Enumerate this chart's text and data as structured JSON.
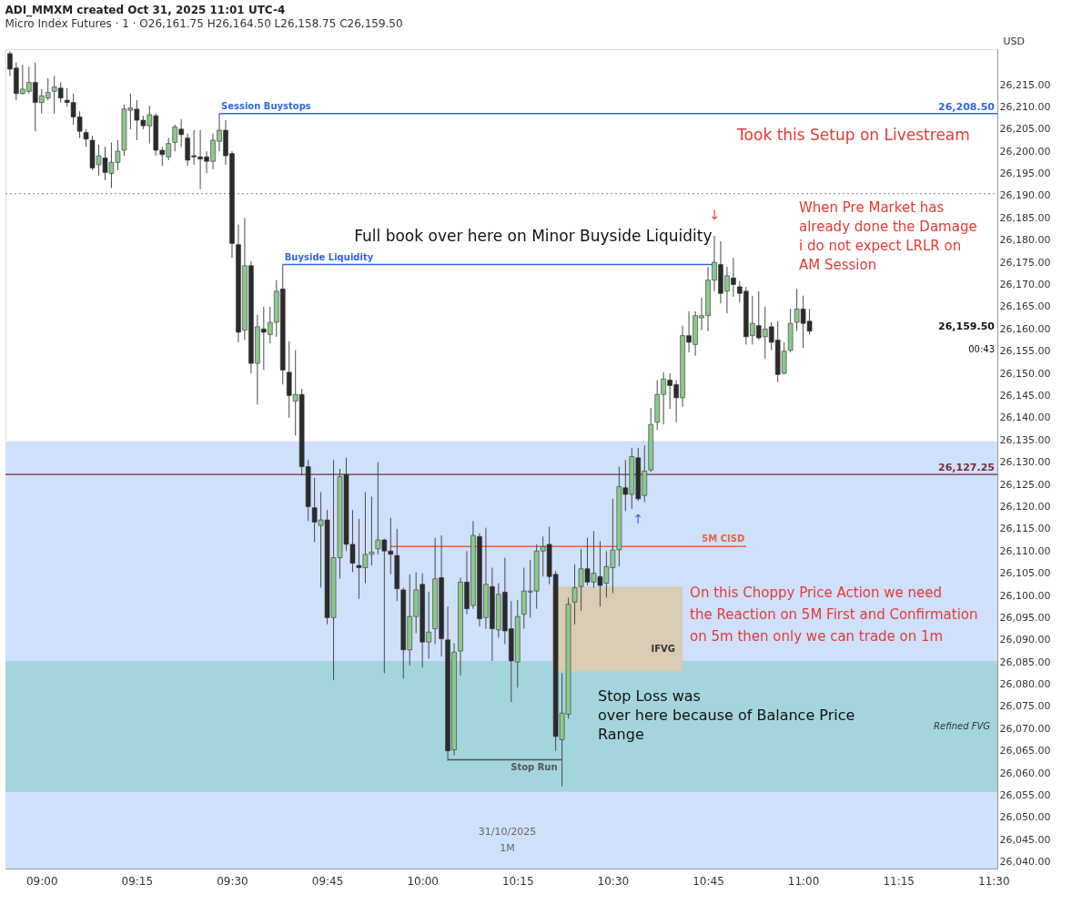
{
  "chart_data": {
    "type": "candlestick",
    "title": "ADI_MMXM created Oct 31, 2025 11:01 UTC-4",
    "subtitle": "Micro Index Futures · 1 · O26,161.75 H26,164.50 L26,158.75 C26,159.50",
    "ylabel": "USD",
    "x": [
      8.9167,
      8.9333,
      8.95,
      8.9667,
      8.9833,
      9,
      9.0167,
      9.0333,
      9.05,
      9.0667,
      9.0833,
      9.1,
      9.1167,
      9.1333,
      9.15,
      9.1667,
      9.1833,
      9.2,
      9.2167,
      9.2333,
      9.25,
      9.2667,
      9.2833,
      9.3,
      9.3167,
      9.3333,
      9.35,
      9.3667,
      9.3833,
      9.4,
      9.4167,
      9.4333,
      9.45,
      9.4667,
      9.4833,
      9.5,
      9.5167,
      9.5333,
      9.55,
      9.5667,
      9.5833,
      9.6,
      9.6167,
      9.6333,
      9.65,
      9.6667,
      9.6833,
      9.7,
      9.7167,
      9.7333,
      9.75,
      9.7667,
      9.7833,
      9.8,
      9.8167,
      9.8333,
      9.85,
      9.8667,
      9.8833,
      9.9,
      9.9167,
      9.9333,
      9.95,
      9.9667,
      9.9833,
      10,
      10.0167,
      10.0333,
      10.05,
      10.0667,
      10.0833,
      10.1,
      10.1167,
      10.1333,
      10.15,
      10.1667,
      10.1833,
      10.2,
      10.2167,
      10.2333,
      10.25,
      10.2667,
      10.2833,
      10.3,
      10.3167,
      10.3333,
      10.35,
      10.3667,
      10.3833,
      10.4,
      10.4167,
      10.4333,
      10.45,
      10.4667,
      10.4833,
      10.5,
      10.5167,
      10.5333,
      10.55,
      10.5667,
      10.5833,
      10.6,
      10.6167,
      10.6333,
      10.65,
      10.6667,
      10.6833,
      10.7,
      10.7167,
      10.7333,
      10.75,
      10.7667,
      10.7833,
      10.8,
      10.8167,
      10.8333,
      10.85,
      10.8667,
      10.8833,
      10.9,
      10.9167,
      10.9333,
      10.95,
      10.9667,
      10.9833,
      11,
      11.0167
    ],
    "ohlc": [
      [
        26222,
        26222.5,
        26217,
        26218.5
      ],
      [
        26218.75,
        26220,
        26211.5,
        26213
      ],
      [
        26213,
        26219.5,
        26212.75,
        26214
      ],
      [
        26213.5,
        26219,
        26213,
        26215.5
      ],
      [
        26215.5,
        26220,
        26204.5,
        26211
      ],
      [
        26211,
        26214,
        26208.5,
        26212.5
      ],
      [
        26212,
        26216.5,
        26211.5,
        26213.25
      ],
      [
        26213.5,
        26217,
        26208.5,
        26214.5
      ],
      [
        26214.25,
        26215.5,
        26211,
        26212
      ],
      [
        26211.5,
        26214.25,
        26210,
        26211
      ],
      [
        26211,
        26213,
        26206,
        26207.75
      ],
      [
        26207.75,
        26209,
        26203,
        26204.5
      ],
      [
        26204.25,
        26205,
        26201,
        26202.75
      ],
      [
        26202.5,
        26203.5,
        26195.75,
        26196.25
      ],
      [
        26197,
        26201.5,
        26194.5,
        26199
      ],
      [
        26198.5,
        26201,
        26193.5,
        26195.25
      ],
      [
        26195,
        26202,
        26191.75,
        26197.5
      ],
      [
        26197.5,
        26202.5,
        26195.75,
        26200
      ],
      [
        26200.25,
        26210.5,
        26199,
        26209.5
      ],
      [
        26209.25,
        26213,
        26205,
        26209.75
      ],
      [
        26209.5,
        26211.5,
        26202.5,
        26207
      ],
      [
        26207,
        26208,
        26205,
        26205.75
      ],
      [
        26205.75,
        26210.25,
        26201.75,
        26208.25
      ],
      [
        26208,
        26208.5,
        26199,
        26200.25
      ],
      [
        26200.25,
        26201,
        26196.75,
        26199.25
      ],
      [
        26198.75,
        26203,
        26198,
        26201.75
      ],
      [
        26202,
        26206,
        26200,
        26205.5
      ],
      [
        26205,
        26207.25,
        26201,
        26203.75
      ],
      [
        26203,
        26204,
        26196.75,
        26198
      ],
      [
        26199,
        26204.75,
        26197,
        26198.75
      ],
      [
        26198.75,
        26204.75,
        26191.5,
        26198.25
      ],
      [
        26198.75,
        26200,
        26195,
        26197.75
      ],
      [
        26197.75,
        26204,
        26196,
        26202.5
      ],
      [
        26202.25,
        26208.5,
        26200,
        26204.75
      ],
      [
        26204.75,
        26207,
        26197,
        26199
      ],
      [
        26199.5,
        26200,
        26176,
        26179.25
      ],
      [
        26179,
        26183.5,
        26157,
        26159.25
      ],
      [
        26159.75,
        26185,
        26157.5,
        26174.25
      ],
      [
        26174.25,
        26175.25,
        26150,
        26152.25
      ],
      [
        26152.25,
        26163.25,
        26143,
        26160.5
      ],
      [
        26160,
        26165,
        26150.75,
        26159.25
      ],
      [
        26158.75,
        26165,
        26156.75,
        26161.5
      ],
      [
        26161.5,
        26171,
        26158.25,
        26168.5
      ],
      [
        26169,
        26174.5,
        26147.5,
        26150.75
      ],
      [
        26150.25,
        26157.25,
        26140,
        26145
      ],
      [
        26143.75,
        26155.25,
        26136,
        26145.25
      ],
      [
        26145.25,
        26146.5,
        26127,
        26129
      ],
      [
        26129,
        26130.5,
        26116.75,
        26120
      ],
      [
        26119.75,
        26126.5,
        26112,
        26116.5
      ],
      [
        26115.75,
        26123.25,
        26101.75,
        26117
      ],
      [
        26117,
        26119.25,
        26093.5,
        26095
      ],
      [
        26095,
        26130.5,
        26081,
        26108.5
      ],
      [
        26108.5,
        26128.5,
        26103.75,
        26126.75
      ],
      [
        26127.25,
        26131,
        26110,
        26111.5
      ],
      [
        26111.5,
        26119.25,
        26105.25,
        26107.25
      ],
      [
        26106.75,
        26117.25,
        26099.25,
        26106.25
      ],
      [
        26106.25,
        26123.25,
        26102.75,
        26109.25
      ],
      [
        26109.25,
        26122.25,
        26106.75,
        26109.75
      ],
      [
        26110.5,
        26130,
        26109.25,
        26112.5
      ],
      [
        26112.5,
        26112.75,
        26082.5,
        26110
      ],
      [
        26110,
        26117.5,
        26104.75,
        26109.25
      ],
      [
        26109,
        26115,
        26098.75,
        26101.5
      ],
      [
        26101.25,
        26101.75,
        26081.25,
        26087.75
      ],
      [
        26087.75,
        26104.75,
        26084.25,
        26095.25
      ],
      [
        26095.25,
        26105.25,
        26091.5,
        26101.25
      ],
      [
        26102.5,
        26105,
        26083.75,
        26089.5
      ],
      [
        26089.5,
        26100.75,
        26085.75,
        26091.75
      ],
      [
        26092.5,
        26113,
        26089,
        26103.75
      ],
      [
        26104,
        26113.5,
        26086.25,
        26090.25
      ],
      [
        26090,
        26097.5,
        26062.75,
        26065
      ],
      [
        26065.25,
        26089.25,
        26064,
        26087.25
      ],
      [
        26087.5,
        26104,
        26082,
        26103
      ],
      [
        26103,
        26110,
        26095.75,
        26097
      ],
      [
        26097.75,
        26116.75,
        26097,
        26113.5
      ],
      [
        26113.25,
        26114,
        26093,
        26094.75
      ],
      [
        26095,
        26115.25,
        26092.5,
        26102.5
      ],
      [
        26102,
        26106.25,
        26085.25,
        26092.5
      ],
      [
        26092.25,
        26102.75,
        26090.5,
        26100.25
      ],
      [
        26100.75,
        26108.5,
        26089,
        26092
      ],
      [
        26092.5,
        26098.75,
        26076,
        26085.25
      ],
      [
        26085,
        26099,
        26079.25,
        26095.25
      ],
      [
        26095.75,
        26106.25,
        26092.5,
        26101
      ],
      [
        26100.75,
        26108,
        26095,
        26101
      ],
      [
        26101,
        26111.5,
        26097,
        26110
      ],
      [
        26110,
        26113.25,
        26104.25,
        26111
      ],
      [
        26111.5,
        26115.5,
        26102.5,
        26104.25
      ],
      [
        26104.75,
        26105.5,
        26065,
        26068.25
      ],
      [
        26067.5,
        26082.5,
        26057,
        26073.5
      ],
      [
        26073.25,
        26099.5,
        26072.25,
        26098
      ],
      [
        26098.5,
        26107,
        26093.5,
        26101.75
      ],
      [
        26102,
        26110.5,
        26096.5,
        26106
      ],
      [
        26106,
        26113,
        26102.25,
        26103
      ],
      [
        26103,
        26114.5,
        26101.75,
        26105
      ],
      [
        26104.25,
        26112.25,
        26097.5,
        26102.25
      ],
      [
        26102.75,
        26110,
        26099.5,
        26106.5
      ],
      [
        26106.25,
        26121.75,
        26100.5,
        26110.25
      ],
      [
        26110.25,
        26129,
        26106.5,
        26124.5
      ],
      [
        26124.25,
        26130.5,
        26119,
        26122.75
      ],
      [
        26122.75,
        26133.25,
        26119.5,
        26131.25
      ],
      [
        26131,
        26133.25,
        26121.25,
        26121.75
      ],
      [
        26122.5,
        26133.75,
        26121,
        26128
      ],
      [
        26128.25,
        26142.25,
        26127.75,
        26138.5
      ],
      [
        26139,
        26148.5,
        26137.25,
        26145.25
      ],
      [
        26145.25,
        26150.25,
        26138.5,
        26148.75
      ],
      [
        26148.5,
        26150,
        26142,
        26147.25
      ],
      [
        26147.5,
        26148.5,
        26139,
        26144.5
      ],
      [
        26144.5,
        26160.75,
        26142.5,
        26158.5
      ],
      [
        26158.5,
        26164,
        26154.75,
        26157
      ],
      [
        26156.5,
        26164,
        26154,
        26163
      ],
      [
        26162.5,
        26167,
        26159.75,
        26163
      ],
      [
        26163,
        26174,
        26159.5,
        26171
      ],
      [
        26171,
        26181,
        26168.5,
        26175
      ],
      [
        26174.5,
        26179.75,
        26165.75,
        26168
      ],
      [
        26168.5,
        26174,
        26163.5,
        26172
      ],
      [
        26171.5,
        26176,
        26167.25,
        26170
      ],
      [
        26169.5,
        26170.75,
        26166,
        26168
      ],
      [
        26168.5,
        26169.5,
        26156.5,
        26158.25
      ],
      [
        26158.5,
        26167.5,
        26156.5,
        26161.25
      ],
      [
        26160.75,
        26168.5,
        26157.5,
        26158
      ],
      [
        26158.25,
        26165,
        26153.25,
        26160
      ],
      [
        26160.5,
        26161.5,
        26155.25,
        26157
      ],
      [
        26157.5,
        26161.75,
        26148,
        26149.75
      ],
      [
        26150,
        26157,
        26149.75,
        26155
      ],
      [
        26155.25,
        26164.5,
        26154.75,
        26161.25
      ],
      [
        26161.5,
        26169,
        26159.5,
        26164.5
      ],
      [
        26164.5,
        26167.5,
        26155.75,
        26161.25
      ],
      [
        26161.75,
        26164.5,
        26158.75,
        26159.5
      ]
    ],
    "colors": [
      "#2b2b2b",
      "#2b2b2b",
      "#8bc98b",
      "#8bc98b",
      "#2b2b2b",
      "#8bc98b",
      "#8bc98b",
      "#8bc98b",
      "#2b2b2b",
      "#2b2b2b",
      "#2b2b2b",
      "#2b2b2b",
      "#2b2b2b",
      "#2b2b2b",
      "#8bc98b",
      "#2b2b2b",
      "#8bc98b",
      "#8bc98b",
      "#8bc98b",
      "#8bc98b",
      "#2b2b2b",
      "#2b2b2b",
      "#8bc98b",
      "#2b2b2b",
      "#2b2b2b",
      "#8bc98b",
      "#8bc98b",
      "#2b2b2b",
      "#2b2b2b",
      "#2b2b2b",
      "#2b2b2b",
      "#2b2b2b",
      "#8bc98b",
      "#8bc98b",
      "#2b2b2b",
      "#2b2b2b",
      "#2b2b2b",
      "#8bc98b",
      "#2b2b2b",
      "#8bc98b",
      "#2b2b2b",
      "#8bc98b",
      "#8bc98b",
      "#2b2b2b",
      "#2b2b2b",
      "#8bc98b",
      "#2b2b2b",
      "#2b2b2b",
      "#2b2b2b",
      "#8bc98b",
      "#2b2b2b",
      "#8bc98b",
      "#8bc98b",
      "#2b2b2b",
      "#2b2b2b",
      "#2b2b2b",
      "#8bc98b",
      "#8bc98b",
      "#8bc98b",
      "#2b2b2b",
      "#2b2b2b",
      "#2b2b2b",
      "#2b2b2b",
      "#8bc98b",
      "#8bc98b",
      "#2b2b2b",
      "#8bc98b",
      "#8bc98b",
      "#2b2b2b",
      "#2b2b2b",
      "#8bc98b",
      "#8bc98b",
      "#2b2b2b",
      "#8bc98b",
      "#2b2b2b",
      "#8bc98b",
      "#2b2b2b",
      "#8bc98b",
      "#2b2b2b",
      "#2b2b2b",
      "#8bc98b",
      "#8bc98b",
      "#8bc98b",
      "#8bc98b",
      "#8bc98b",
      "#2b2b2b",
      "#2b2b2b",
      "#8bc98b",
      "#8bc98b",
      "#8bc98b",
      "#8bc98b",
      "#2b2b2b",
      "#8bc98b",
      "#2b2b2b",
      "#8bc98b",
      "#8bc98b",
      "#8bc98b",
      "#2b2b2b",
      "#8bc98b",
      "#2b2b2b",
      "#8bc98b",
      "#8bc98b",
      "#8bc98b",
      "#8bc98b",
      "#2b2b2b",
      "#2b2b2b",
      "#8bc98b",
      "#2b2b2b",
      "#8bc98b",
      "#8bc98b",
      "#8bc98b",
      "#8bc98b",
      "#2b2b2b",
      "#8bc98b",
      "#2b2b2b",
      "#2b2b2b",
      "#2b2b2b",
      "#8bc98b",
      "#2b2b2b",
      "#8bc98b",
      "#2b2b2b",
      "#2b2b2b",
      "#8bc98b",
      "#8bc98b",
      "#8bc98b",
      "#2b2b2b",
      "#2b2b2b"
    ],
    "series": [
      {
        "type": "line",
        "name": "Session Buystops",
        "color": "#2f66e0",
        "x": [
          9.4667,
          11.51
        ],
        "values": [
          26208.5,
          26208.5
        ]
      },
      {
        "type": "line",
        "name": "Buyside Liquidity",
        "color": "#2f66e0",
        "x": [
          9.6333,
          10.7667
        ],
        "values": [
          26174.5,
          26174.5
        ]
      },
      {
        "type": "line",
        "name": "5M CISD",
        "color": "#e8623a",
        "x": [
          9.9167,
          10.85
        ],
        "values": [
          26111,
          26111
        ]
      },
      {
        "type": "line",
        "name": "Stop Run",
        "color": "#555555",
        "x": [
          10.0667,
          10.3667
        ],
        "values": [
          26063,
          26063
        ]
      },
      {
        "type": "bar",
        "color": "#d9cbb4",
        "x": [
          10.5125
        ],
        "base": [
          26083
        ],
        "values": [
          19
        ]
      }
    ],
    "ref_lines": [
      {
        "axis": "y",
        "value": 26190.5,
        "color": "#9e9e9e",
        "line_style": "dotted"
      },
      {
        "axis": "y",
        "value": 26127.25,
        "label": "26,127.25",
        "color": "#7b2a3a"
      }
    ],
    "bands": [
      {
        "axis": "y",
        "from": 26038.5,
        "to": 26134.75,
        "color": "#cfe0fb"
      },
      {
        "axis": "y",
        "from": 26055.75,
        "to": 26085.25,
        "label": "Refined FVG",
        "color": "#a3d5dc"
      }
    ],
    "annotations": [
      {
        "text": "Stop Loss was\nover here because of Balance Price\nRange",
        "x": 10.4083,
        "y": 26083
      },
      {
        "text": "26,208.50",
        "x": 11.51,
        "y": 26208.5
      },
      "Full book over here on Minor Buyside Liquidity",
      "IFVG",
      "↓",
      "↑",
      "26,159.50",
      "00:43",
      "Took this Setup on Livestream",
      "When Pre Market has\nalready done the Damage\ni do not expect LRLR on\nAM Session",
      "On this Choppy Price Action we need\nthe Reaction on 5M First and Confirmation\non 5m then only we can trade on 1m",
      "31/10/2025",
      "1M"
    ],
    "xlim": [
      8.905,
      11.51
    ],
    "xticks": [
      {
        "value": 9,
        "label": "09:00"
      },
      {
        "value": 9.25,
        "label": "09:15"
      },
      {
        "value": 9.5,
        "label": "09:30"
      },
      {
        "value": 9.75,
        "label": "09:45"
      },
      {
        "value": 10,
        "label": "10:00"
      },
      {
        "value": 10.25,
        "label": "10:15"
      },
      {
        "value": 10.5,
        "label": "10:30"
      },
      {
        "value": 10.75,
        "label": "10:45"
      },
      {
        "value": 11,
        "label": "11:00"
      },
      {
        "value": 11.25,
        "label": "11:15"
      },
      {
        "value": 11.5,
        "label": "11:30"
      }
    ],
    "ylim": [
      26038.5,
      26223
    ],
    "yticks": [
      {
        "value": 26040,
        "label": "26,040.00"
      },
      {
        "value": 26045,
        "label": "26,045.00"
      },
      {
        "value": 26050,
        "label": "26,050.00"
      },
      {
        "value": 26055,
        "label": "26,055.00"
      },
      {
        "value": 26060,
        "label": "26,060.00"
      },
      {
        "value": 26065,
        "label": "26,065.00"
      },
      {
        "value": 26070,
        "label": "26,070.00"
      },
      {
        "value": 26075,
        "label": "26,075.00"
      },
      {
        "value": 26080,
        "label": "26,080.00"
      },
      {
        "value": 26085,
        "label": "26,085.00"
      },
      {
        "value": 26090,
        "label": "26,090.00"
      },
      {
        "value": 26095,
        "label": "26,095.00"
      },
      {
        "value": 26100,
        "label": "26,100.00"
      },
      {
        "value": 26105,
        "label": "26,105.00"
      },
      {
        "value": 26110,
        "label": "26,110.00"
      },
      {
        "value": 26115,
        "label": "26,115.00"
      },
      {
        "value": 26120,
        "label": "26,120.00"
      },
      {
        "value": 26125,
        "label": "26,125.00"
      },
      {
        "value": 26130,
        "label": "26,130.00"
      },
      {
        "value": 26135,
        "label": "26,135.00"
      },
      {
        "value": 26140,
        "label": "26,140.00"
      },
      {
        "value": 26145,
        "label": "26,145.00"
      },
      {
        "value": 26150,
        "label": "26,150.00"
      },
      {
        "value": 26155,
        "label": "26,155.00"
      },
      {
        "value": 26160,
        "label": "26,160.00"
      },
      {
        "value": 26165,
        "label": "26,165.00"
      },
      {
        "value": 26170,
        "label": "26,170.00"
      },
      {
        "value": 26175,
        "label": "26,175.00"
      },
      {
        "value": 26180,
        "label": "26,180.00"
      },
      {
        "value": 26185,
        "label": "26,185.00"
      },
      {
        "value": 26190,
        "label": "26,190.00"
      },
      {
        "value": 26195,
        "label": "26,195.00"
      },
      {
        "value": 26200,
        "label": "26,200.00"
      },
      {
        "value": 26205,
        "label": "26,205.00"
      },
      {
        "value": 26210,
        "label": "26,210.00"
      },
      {
        "value": 26215,
        "label": "26,215.00"
      }
    ]
  }
}
